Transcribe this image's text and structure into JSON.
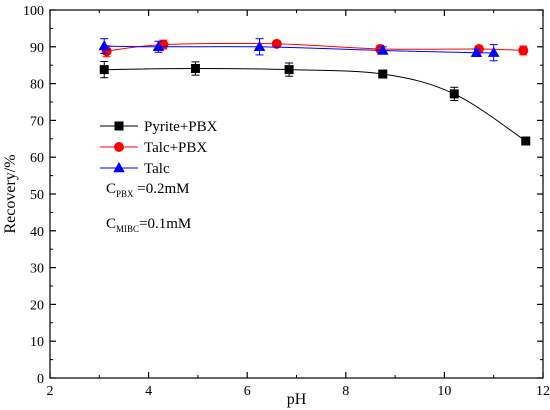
{
  "chart_data": {
    "type": "line",
    "xlabel": "pH",
    "ylabel": "Recovery/%",
    "xlim": [
      2,
      12
    ],
    "ylim": [
      0,
      100
    ],
    "x_ticks": [
      "2",
      "4",
      "6",
      "8",
      "10",
      "12"
    ],
    "y_ticks": [
      "0",
      "10",
      "20",
      "30",
      "40",
      "50",
      "60",
      "70",
      "80",
      "90",
      "100"
    ],
    "grid": false,
    "legend_position": "center-right",
    "series": [
      {
        "name": "Pyrite+PBX",
        "color": "#000000",
        "marker": "square",
        "x": [
          3.1,
          4.95,
          6.85,
          8.75,
          10.2,
          11.65
        ],
        "y": [
          83.8,
          84.1,
          83.8,
          82.6,
          77.2,
          64.4
        ],
        "err": [
          2.2,
          1.8,
          1.8,
          0.8,
          1.8,
          0.8
        ]
      },
      {
        "name": "Talc+PBX",
        "color": "#ff0000",
        "marker": "circle",
        "x": [
          3.15,
          4.3,
          6.6,
          8.7,
          10.7,
          11.6
        ],
        "y": [
          88.8,
          90.6,
          90.8,
          89.4,
          89.4,
          89.0
        ],
        "err": [
          1.5,
          1.2,
          0.8,
          1.0,
          0.8,
          1.2
        ]
      },
      {
        "name": "Talc",
        "color": "#0000ff",
        "marker": "triangle",
        "x": [
          3.1,
          4.2,
          6.25,
          8.75,
          10.65,
          11.0
        ],
        "y": [
          90.2,
          90.0,
          90.0,
          89.0,
          88.4,
          88.4
        ],
        "err": [
          2.0,
          1.5,
          2.2,
          1.0,
          1.0,
          2.2
        ]
      }
    ],
    "annotations": [
      {
        "main": "C",
        "sub": "PBX",
        "rest": " =0.2mM"
      },
      {
        "main": "C",
        "sub": "MIBC",
        "rest": "=0.1mM"
      }
    ]
  }
}
